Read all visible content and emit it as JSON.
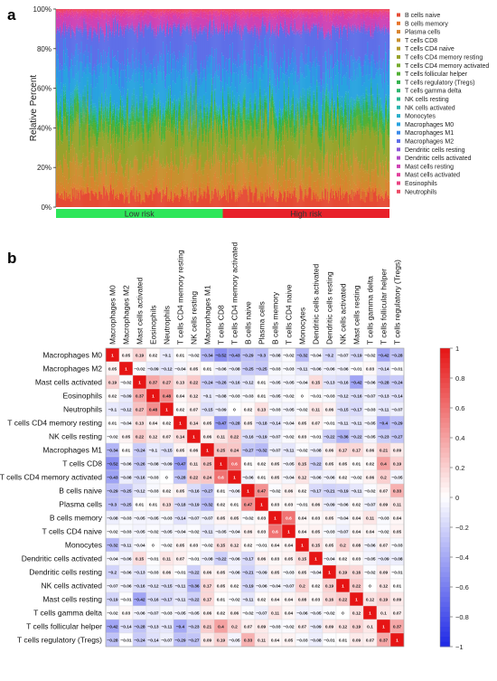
{
  "panel_labels": {
    "a": "a",
    "b": "b"
  },
  "chart_data": [
    {
      "type": "bar",
      "stacked": true,
      "ylabel": "Relative Percent",
      "xlabel": "",
      "ylim": [
        0,
        100
      ],
      "yticks": [
        "0%",
        "20%",
        "40%",
        "60%",
        "80%",
        "100%"
      ],
      "samples_shown": 375,
      "legend_position": "right",
      "risk_groups": [
        {
          "label": "Low risk",
          "color": "#2ee65a",
          "fraction": 0.5
        },
        {
          "label": "High risk",
          "color": "#e8212a",
          "fraction": 0.5
        }
      ],
      "series": [
        {
          "name": "B cells naive",
          "color": "#e64b35",
          "approx_mean_percent": 6
        },
        {
          "name": "B cells memory",
          "color": "#e8742b",
          "approx_mean_percent": 1
        },
        {
          "name": "Plasma cells",
          "color": "#d9842f",
          "approx_mean_percent": 5
        },
        {
          "name": "T cells CD8",
          "color": "#c8902e",
          "approx_mean_percent": 10
        },
        {
          "name": "T cells CD4 naive",
          "color": "#b59a2e",
          "approx_mean_percent": 1
        },
        {
          "name": "T cells CD4 memory resting",
          "color": "#98a32c",
          "approx_mean_percent": 14
        },
        {
          "name": "T cells CD4 memory activated",
          "color": "#76ab2f",
          "approx_mean_percent": 2
        },
        {
          "name": "T cells follicular helper",
          "color": "#52b035",
          "approx_mean_percent": 5
        },
        {
          "name": "T cells regulatory (Tregs)",
          "color": "#33b24d",
          "approx_mean_percent": 3
        },
        {
          "name": "T cells gamma delta",
          "color": "#2db56e",
          "approx_mean_percent": 1
        },
        {
          "name": "NK cells resting",
          "color": "#2bb58f",
          "approx_mean_percent": 2
        },
        {
          "name": "NK cells activated",
          "color": "#2ab3ad",
          "approx_mean_percent": 2
        },
        {
          "name": "Monocytes",
          "color": "#2aaec9",
          "approx_mean_percent": 1
        },
        {
          "name": "Macrophages M0",
          "color": "#28a3e0",
          "approx_mean_percent": 14
        },
        {
          "name": "Macrophages M1",
          "color": "#3b8bea",
          "approx_mean_percent": 8
        },
        {
          "name": "Macrophages M2",
          "color": "#5e6fe8",
          "approx_mean_percent": 14
        },
        {
          "name": "Dendritic cells resting",
          "color": "#8a59d9",
          "approx_mean_percent": 1
        },
        {
          "name": "Dendritic cells activated",
          "color": "#b04ac8",
          "approx_mean_percent": 1
        },
        {
          "name": "Mast cells resting",
          "color": "#cf42b4",
          "approx_mean_percent": 5
        },
        {
          "name": "Mast cells activated",
          "color": "#e23f9c",
          "approx_mean_percent": 2
        },
        {
          "name": "Eosinophils",
          "color": "#ea4282",
          "approx_mean_percent": 1
        },
        {
          "name": "Neutrophils",
          "color": "#ed4b65",
          "approx_mean_percent": 1
        }
      ]
    },
    {
      "type": "heatmap",
      "labels": [
        "Macrophages M0",
        "Macrophages M2",
        "Mast cells activated",
        "Eosinophils",
        "Neutrophils",
        "T cells CD4 memory resting",
        "NK cells resting",
        "Macrophages M1",
        "T cells CD8",
        "T cells CD4 memory activated",
        "B cells naive",
        "Plasma cells",
        "B cells memory",
        "T cells CD4 naive",
        "Monocytes",
        "Dendritic cells activated",
        "Dendritic cells resting",
        "NK cells activated",
        "Mast cells resting",
        "T cells gamma delta",
        "T cells follicular helper",
        "T cells regulatory (Tregs)"
      ],
      "colorbar": {
        "min": -1,
        "max": 1,
        "ticks": [
          "1",
          "0.8",
          "0.6",
          "0.4",
          "0.2",
          "0",
          "−0.2",
          "−0.4",
          "−0.6",
          "−0.8",
          "−1"
        ]
      },
      "matrix": [
        [
          "1",
          "0.05",
          "0.19",
          "0.02",
          "−0.1",
          "0.01",
          "−0.02",
          "−0.34",
          "−0.52",
          "−0.43",
          "−0.29",
          "−0.3",
          "−0.08",
          "−0.02",
          "−0.32",
          "−0.04",
          "−0.2",
          "−0.07",
          "−0.19",
          "−0.02",
          "−0.42",
          "−0.28"
        ],
        [
          "0.05",
          "1",
          "−0.02",
          "−0.09",
          "−0.12",
          "−0.04",
          "0.05",
          "0.01",
          "−0.06",
          "−0.08",
          "−0.25",
          "−0.25",
          "−0.03",
          "−0.03",
          "−0.11",
          "−0.06",
          "−0.06",
          "−0.06",
          "−0.01",
          "0.03",
          "−0.14",
          "−0.01"
        ],
        [
          "0.19",
          "−0.02",
          "1",
          "0.37",
          "0.27",
          "0.13",
          "0.22",
          "−0.24",
          "−0.26",
          "−0.16",
          "−0.12",
          "0.01",
          "−0.05",
          "−0.05",
          "−0.04",
          "0.15",
          "−0.13",
          "−0.16",
          "−0.42",
          "−0.06",
          "−0.28",
          "−0.24"
        ],
        [
          "0.02",
          "−0.09",
          "0.37",
          "1",
          "0.48",
          "0.04",
          "0.12",
          "−0.1",
          "−0.08",
          "−0.03",
          "−0.03",
          "0.01",
          "−0.05",
          "−0.02",
          "0",
          "−0.01",
          "−0.03",
          "−0.12",
          "−0.16",
          "−0.07",
          "−0.13",
          "−0.14"
        ],
        [
          "−0.1",
          "−0.12",
          "0.27",
          "0.48",
          "1",
          "0.02",
          "0.07",
          "−0.15",
          "−0.09",
          "0",
          "0.02",
          "0.13",
          "−0.03",
          "−0.05",
          "−0.02",
          "0.11",
          "0.06",
          "−0.15",
          "−0.17",
          "−0.03",
          "−0.11",
          "−0.07"
        ],
        [
          "0.01",
          "−0.04",
          "0.13",
          "0.04",
          "0.02",
          "1",
          "0.14",
          "0.05",
          "−0.47",
          "−0.28",
          "0.05",
          "−0.18",
          "−0.14",
          "−0.04",
          "0.05",
          "0.07",
          "−0.01",
          "−0.11",
          "−0.11",
          "−0.05",
          "−0.4",
          "−0.29"
        ],
        [
          "−0.02",
          "0.05",
          "0.22",
          "0.12",
          "0.07",
          "0.14",
          "1",
          "0.06",
          "0.11",
          "0.22",
          "−0.16",
          "−0.19",
          "−0.07",
          "−0.02",
          "0.03",
          "−0.01",
          "−0.22",
          "−0.36",
          "−0.22",
          "−0.05",
          "−0.23",
          "−0.27"
        ],
        [
          "−0.34",
          "0.01",
          "−0.24",
          "−0.1",
          "−0.15",
          "0.05",
          "0.06",
          "1",
          "0.25",
          "0.24",
          "−0.27",
          "−0.32",
          "−0.07",
          "−0.11",
          "−0.02",
          "−0.08",
          "0.06",
          "0.17",
          "0.17",
          "0.06",
          "0.21",
          "0.09"
        ],
        [
          "−0.52",
          "−0.06",
          "−0.26",
          "−0.08",
          "−0.09",
          "−0.47",
          "0.11",
          "0.25",
          "1",
          "0.6",
          "0.01",
          "0.02",
          "0.05",
          "−0.05",
          "0.15",
          "−0.22",
          "0.05",
          "0.05",
          "0.01",
          "0.02",
          "0.4",
          "0.19"
        ],
        [
          "−0.43",
          "−0.08",
          "−0.16",
          "−0.03",
          "0",
          "−0.28",
          "0.22",
          "0.24",
          "0.6",
          "1",
          "−0.06",
          "0.01",
          "0.05",
          "−0.04",
          "0.12",
          "−0.06",
          "−0.06",
          "0.02",
          "−0.02",
          "0.06",
          "0.2",
          "−0.05"
        ],
        [
          "−0.29",
          "−0.25",
          "−0.12",
          "−0.03",
          "0.02",
          "0.05",
          "−0.16",
          "−0.27",
          "0.01",
          "−0.06",
          "1",
          "0.47",
          "−0.02",
          "0.06",
          "0.02",
          "−0.17",
          "−0.21",
          "−0.19",
          "−0.11",
          "−0.02",
          "0.07",
          "0.33"
        ],
        [
          "−0.3",
          "−0.25",
          "0.01",
          "0.01",
          "0.13",
          "−0.18",
          "−0.19",
          "−0.32",
          "0.02",
          "0.01",
          "0.47",
          "1",
          "0.03",
          "0.03",
          "−0.01",
          "0.06",
          "−0.09",
          "−0.06",
          "0.02",
          "−0.07",
          "0.09",
          "0.11"
        ],
        [
          "−0.08",
          "−0.03",
          "−0.05",
          "−0.05",
          "−0.03",
          "−0.14",
          "−0.07",
          "−0.07",
          "0.05",
          "0.05",
          "−0.02",
          "0.03",
          "1",
          "0.6",
          "0.04",
          "0.03",
          "0.05",
          "−0.04",
          "0.04",
          "0.11",
          "−0.03",
          "0.04"
        ],
        [
          "−0.02",
          "−0.03",
          "−0.05",
          "−0.02",
          "−0.05",
          "−0.04",
          "−0.02",
          "−0.11",
          "−0.05",
          "−0.04",
          "0.06",
          "0.03",
          "0.6",
          "1",
          "0.04",
          "0.05",
          "−0.03",
          "−0.07",
          "0.04",
          "0.04",
          "−0.02",
          "0.05"
        ],
        [
          "−0.32",
          "−0.11",
          "−0.04",
          "0",
          "−0.02",
          "0.05",
          "0.03",
          "−0.02",
          "0.15",
          "0.12",
          "0.02",
          "−0.01",
          "0.04",
          "0.04",
          "1",
          "0.15",
          "0.05",
          "0.2",
          "0.08",
          "−0.06",
          "0.07",
          "−0.03"
        ],
        [
          "−0.04",
          "−0.06",
          "0.15",
          "−0.01",
          "0.11",
          "0.07",
          "−0.01",
          "−0.08",
          "−0.22",
          "−0.06",
          "−0.17",
          "0.06",
          "0.03",
          "0.05",
          "0.15",
          "1",
          "−0.04",
          "0.02",
          "0.03",
          "−0.05",
          "−0.09",
          "−0.08"
        ],
        [
          "−0.2",
          "−0.06",
          "−0.13",
          "−0.03",
          "0.06",
          "−0.01",
          "−0.22",
          "0.06",
          "0.05",
          "−0.06",
          "−0.21",
          "−0.09",
          "0.05",
          "−0.03",
          "0.05",
          "−0.04",
          "1",
          "0.19",
          "0.16",
          "−0.02",
          "0.09",
          "−0.01"
        ],
        [
          "−0.07",
          "−0.06",
          "−0.16",
          "−0.12",
          "−0.15",
          "−0.11",
          "−0.36",
          "0.17",
          "0.05",
          "0.02",
          "−0.19",
          "−0.06",
          "−0.04",
          "−0.07",
          "0.2",
          "0.02",
          "0.19",
          "1",
          "0.22",
          "0",
          "0.12",
          "0.01"
        ],
        [
          "−0.19",
          "−0.01",
          "−0.42",
          "−0.16",
          "−0.17",
          "−0.11",
          "−0.22",
          "0.17",
          "0.01",
          "−0.02",
          "−0.11",
          "0.02",
          "0.04",
          "0.04",
          "0.08",
          "0.03",
          "0.16",
          "0.22",
          "1",
          "0.12",
          "0.19",
          "0.09"
        ],
        [
          "−0.02",
          "0.03",
          "−0.06",
          "−0.07",
          "−0.03",
          "−0.05",
          "−0.05",
          "0.06",
          "0.02",
          "0.06",
          "−0.02",
          "−0.07",
          "0.11",
          "0.04",
          "−0.06",
          "−0.05",
          "−0.02",
          "0",
          "0.12",
          "1",
          "0.1",
          "0.07"
        ],
        [
          "−0.42",
          "−0.14",
          "−0.28",
          "−0.13",
          "−0.11",
          "−0.4",
          "−0.23",
          "0.21",
          "0.4",
          "0.2",
          "0.07",
          "0.09",
          "−0.03",
          "−0.02",
          "0.07",
          "−0.09",
          "0.09",
          "0.12",
          "0.19",
          "0.1",
          "1",
          "0.37"
        ],
        [
          "−0.28",
          "−0.01",
          "−0.24",
          "−0.14",
          "−0.07",
          "−0.29",
          "−0.27",
          "0.09",
          "0.19",
          "−0.05",
          "0.33",
          "0.11",
          "0.04",
          "0.05",
          "−0.03",
          "−0.08",
          "−0.01",
          "0.01",
          "0.09",
          "0.07",
          "0.37",
          "1"
        ]
      ]
    }
  ]
}
